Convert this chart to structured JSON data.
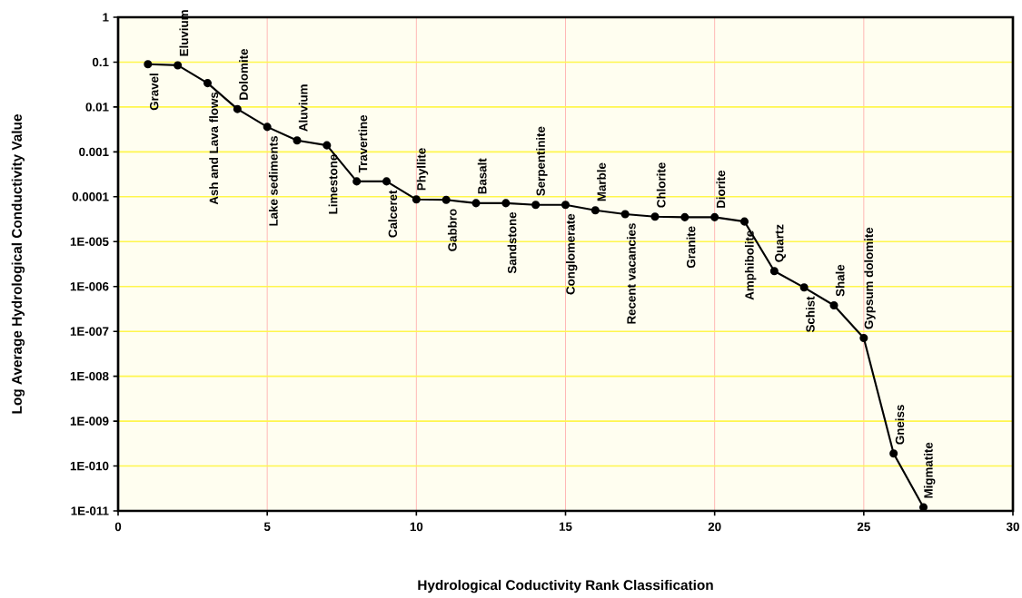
{
  "chart_data": {
    "type": "line",
    "xlabel": "Hydrological Coductivity Rank Classification",
    "ylabel": "Log Average Hydrological Conductivity Value",
    "x": [
      1,
      2,
      3,
      4,
      5,
      6,
      7,
      8,
      9,
      10,
      11,
      12,
      13,
      14,
      15,
      16,
      17,
      18,
      19,
      20,
      21,
      22,
      23,
      24,
      25,
      26,
      27
    ],
    "series": [
      {
        "color": "#000000",
        "values": [
          0.09,
          0.085,
          0.034,
          0.009,
          0.0036,
          0.0018,
          0.0014,
          0.00022,
          0.00022,
          8.7e-05,
          8.5e-05,
          7.2e-05,
          7.2e-05,
          6.6e-05,
          6.6e-05,
          5e-05,
          4.1e-05,
          3.6e-05,
          3.5e-05,
          3.5e-05,
          2.8e-05,
          2.2e-06,
          9.5e-07,
          3.8e-07,
          7.1e-08,
          1.9e-10,
          1.2e-11
        ]
      }
    ],
    "log": "y",
    "marker": "circle",
    "line_style": "solid",
    "grid": true,
    "xlim": [
      0,
      30
    ],
    "xticks": [
      0,
      5,
      10,
      15,
      20,
      25,
      30
    ],
    "ylim": [
      1e-11,
      1
    ],
    "yticks": [
      1,
      0.1,
      0.01,
      0.001,
      0.0001,
      {
        "value": 1e-05,
        "label": "1E-005"
      },
      {
        "value": 1e-06,
        "label": "1E-006"
      },
      {
        "value": 1e-07,
        "label": "1E-007"
      },
      {
        "value": 1e-08,
        "label": "1E-008"
      },
      {
        "value": 1e-09,
        "label": "1E-009"
      },
      {
        "value": 1e-10,
        "label": "1E-010"
      },
      {
        "value": 1e-11,
        "label": "1E-011"
      }
    ],
    "annotations": [
      {
        "text": "Gravel",
        "x": 1,
        "y": 0.09
      },
      {
        "text": "Eluvium",
        "x": 2,
        "y": 0.085
      },
      {
        "text": "Ash and  Lava flows",
        "x": 3,
        "y": 0.034
      },
      {
        "text": "Dolomite",
        "x": 4,
        "y": 0.009
      },
      {
        "text": "Lake sediments",
        "x": 5,
        "y": 0.0036
      },
      {
        "text": "Aluvium",
        "x": 6,
        "y": 0.0018
      },
      {
        "text": "Limestone",
        "x": 7,
        "y": 0.0014
      },
      {
        "text": "Travertine",
        "x": 8,
        "y": 0.00022
      },
      {
        "text": "Calceret",
        "x": 9,
        "y": 0.00022
      },
      {
        "text": "Phyllite",
        "x": 10,
        "y": 8.7e-05
      },
      {
        "text": "Gabbro",
        "x": 11,
        "y": 8.5e-05
      },
      {
        "text": "Basalt",
        "x": 12,
        "y": 7.2e-05
      },
      {
        "text": "Sandstone",
        "x": 13,
        "y": 7.2e-05
      },
      {
        "text": "Serpentinite",
        "x": 14,
        "y": 6.6e-05
      },
      {
        "text": "Conglomerate",
        "x": 15,
        "y": 6.6e-05
      },
      {
        "text": "Marble",
        "x": 16,
        "y": 5e-05
      },
      {
        "text": "Recent vacancies",
        "x": 17,
        "y": 4.1e-05
      },
      {
        "text": "Chlorite",
        "x": 18,
        "y": 3.6e-05
      },
      {
        "text": "Granite",
        "x": 19,
        "y": 3.5e-05
      },
      {
        "text": "Diorite",
        "x": 20,
        "y": 3.5e-05
      },
      {
        "text": "Amphibolite",
        "x": 21,
        "y": 2.8e-05
      },
      {
        "text": "Quartz",
        "x": 22,
        "y": 2.2e-06
      },
      {
        "text": "Schist",
        "x": 23,
        "y": 9.5e-07
      },
      {
        "text": "Shale",
        "x": 24,
        "y": 3.8e-07
      },
      {
        "text": "Gypsum dolomite",
        "x": 25,
        "y": 7.1e-08
      },
      {
        "text": "Gneiss",
        "x": 26,
        "y": 1.9e-10
      },
      {
        "text": "Migmatite",
        "x": 27,
        "y": 1.2e-11
      }
    ]
  }
}
